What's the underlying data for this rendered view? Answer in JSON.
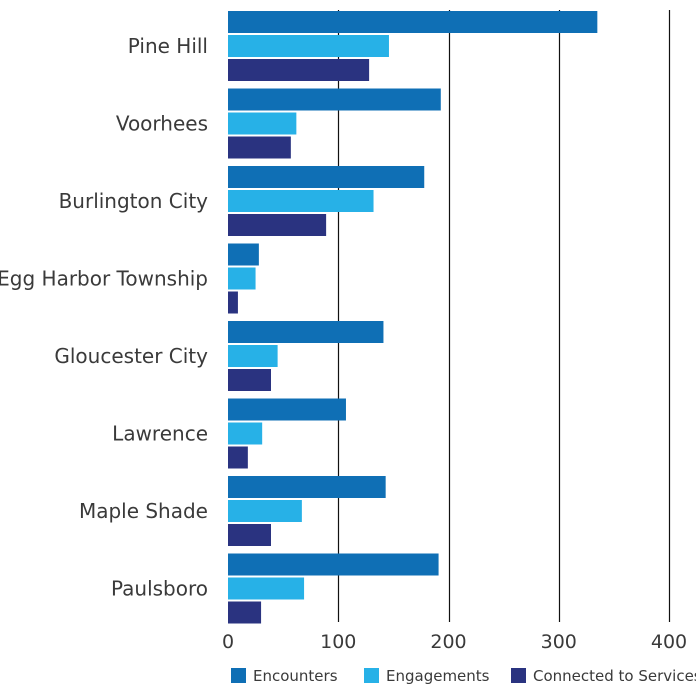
{
  "chart_data": {
    "type": "bar",
    "orientation": "horizontal",
    "categories": [
      "Pine Hill",
      "Voorhees",
      "Burlington City",
      "Egg Harbor Township",
      "Gloucester City",
      "Lawrence",
      "Maple Shade",
      "Paulsboro"
    ],
    "series": [
      {
        "name": "Encounters",
        "color": "#0f6fb5",
        "values": [
          335,
          193,
          178,
          28,
          141,
          107,
          143,
          191
        ]
      },
      {
        "name": "Engagements",
        "color": "#27b1e7",
        "values": [
          146,
          62,
          132,
          25,
          45,
          31,
          67,
          69
        ]
      },
      {
        "name": "Connected to Services",
        "color": "#2a3380",
        "values": [
          128,
          57,
          89,
          9,
          39,
          18,
          39,
          30
        ]
      }
    ],
    "x_ticks": [
      "0",
      "100",
      "200",
      "300",
      "400"
    ],
    "xlim": [
      0,
      400
    ],
    "grid": "vertical",
    "legend": "bottom",
    "title": "",
    "xlabel": "",
    "ylabel": ""
  }
}
